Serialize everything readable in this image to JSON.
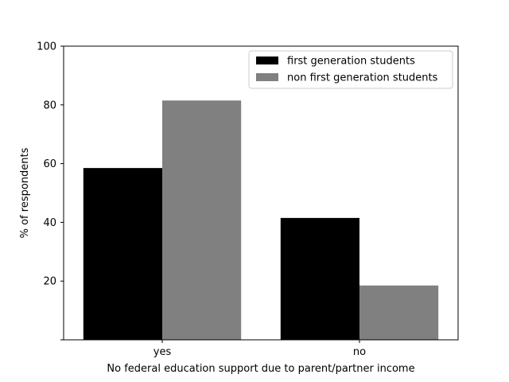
{
  "chart_data": {
    "type": "bar",
    "title": "",
    "categories": [
      "yes",
      "no"
    ],
    "series": [
      {
        "name": "first generation students",
        "values": [
          58.5,
          41.5
        ],
        "color": "#000000"
      },
      {
        "name": "non first generation students",
        "values": [
          81.5,
          18.5
        ],
        "color": "#808080"
      }
    ],
    "xlabel": "No federal education support due to parent/partner income",
    "ylabel": "% of respondents",
    "ylim": [
      0,
      100
    ],
    "yticks": [
      20,
      40,
      60,
      80,
      100
    ],
    "ytick_labels": [
      "20",
      "40",
      "60",
      "80",
      "100"
    ],
    "grid": false,
    "legend_position": "top-right"
  }
}
